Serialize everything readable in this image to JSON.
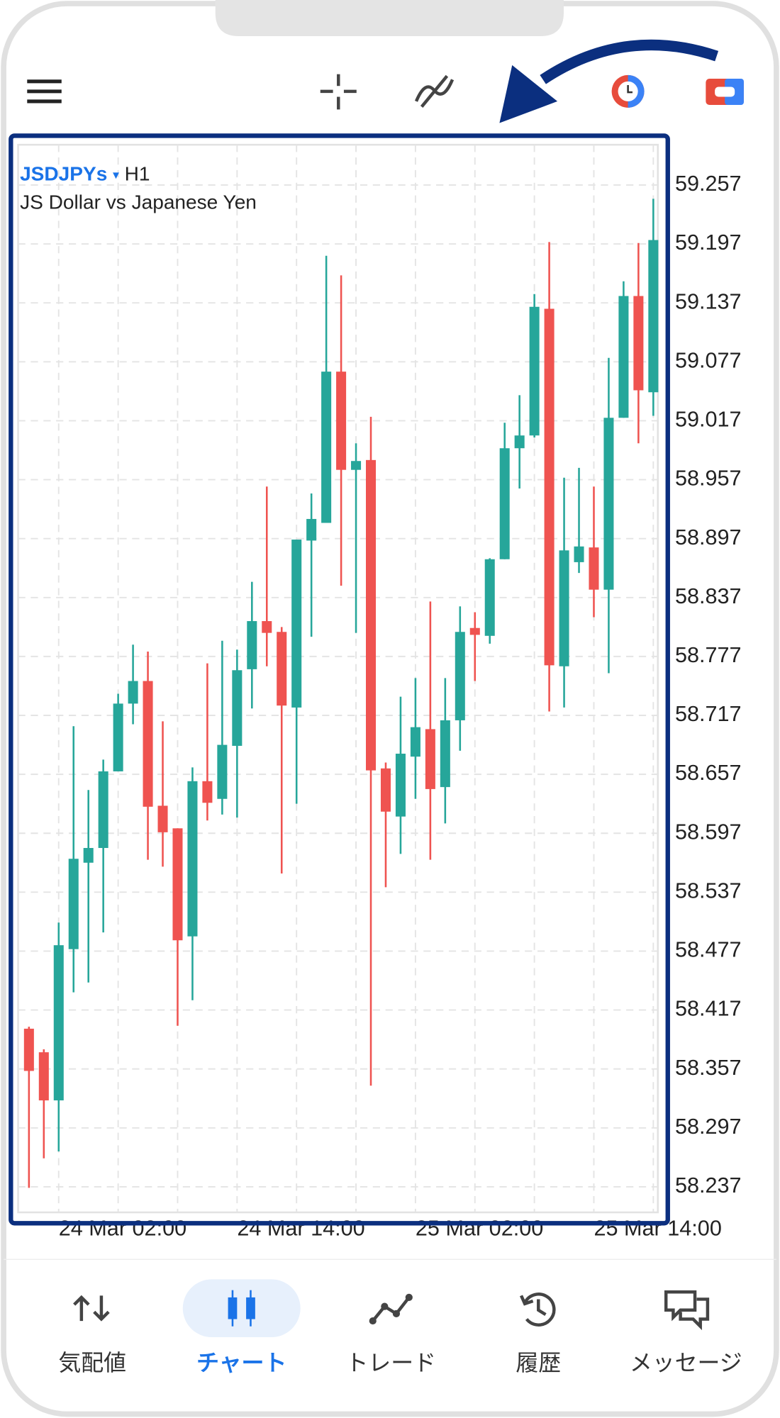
{
  "chart_data": {
    "type": "candlestick",
    "symbol": "JSDJPYs",
    "timeframe": "H1",
    "description": "JS Dollar vs Japanese Yen",
    "categories": [
      null,
      null,
      "24 Mar 02:00",
      null,
      null,
      null,
      null,
      null,
      null,
      null,
      null,
      null,
      null,
      null,
      "24 Mar 14:00",
      null,
      null,
      null,
      null,
      null,
      null,
      null,
      null,
      null,
      null,
      null,
      "25 Mar 02:00",
      null,
      null,
      null,
      null,
      null,
      null,
      null,
      null,
      null,
      null,
      null,
      "25 Mar 14:00",
      null,
      null,
      null,
      null
    ],
    "open": [
      58.398,
      58.374,
      58.325,
      58.479,
      58.567,
      58.582,
      58.66,
      58.729,
      58.752,
      58.625,
      58.602,
      58.492,
      58.65,
      58.632,
      58.686,
      58.764,
      58.813,
      58.802,
      58.725,
      58.895,
      58.913,
      59.067,
      58.967,
      58.977,
      58.663,
      58.614,
      58.675,
      58.703,
      58.644,
      58.712,
      58.806,
      58.798,
      58.876,
      58.989,
      59.002,
      59.131,
      58.767,
      58.873,
      58.888,
      58.845,
      59.02,
      59.144,
      59.046
    ],
    "high": [
      58.4,
      58.377,
      58.506,
      58.706,
      58.641,
      58.672,
      58.739,
      58.789,
      58.782,
      58.711,
      58.602,
      58.664,
      58.77,
      58.793,
      58.784,
      58.853,
      58.95,
      58.807,
      58.896,
      58.943,
      59.185,
      59.165,
      58.994,
      59.021,
      58.669,
      58.736,
      58.755,
      58.833,
      58.755,
      58.828,
      58.822,
      58.877,
      59.015,
      59.043,
      59.146,
      59.199,
      58.959,
      58.969,
      58.95,
      59.081,
      59.159,
      59.198,
      59.243
    ],
    "low": [
      58.236,
      58.266,
      58.273,
      58.435,
      58.445,
      58.496,
      58.66,
      58.708,
      58.57,
      58.563,
      58.401,
      58.427,
      58.61,
      58.616,
      58.613,
      58.724,
      58.767,
      58.556,
      58.627,
      58.797,
      58.913,
      58.849,
      58.801,
      58.34,
      58.542,
      58.576,
      58.632,
      58.57,
      58.607,
      58.681,
      58.752,
      58.79,
      58.876,
      58.948,
      59.0,
      58.721,
      58.725,
      58.862,
      58.817,
      58.76,
      59.02,
      58.994,
      59.022
    ],
    "close": [
      58.355,
      58.325,
      58.483,
      58.571,
      58.582,
      58.66,
      58.729,
      58.752,
      58.624,
      58.598,
      58.488,
      58.65,
      58.628,
      58.687,
      58.763,
      58.813,
      58.801,
      58.727,
      58.896,
      58.917,
      59.067,
      58.967,
      58.976,
      58.661,
      58.619,
      58.678,
      58.705,
      58.642,
      58.712,
      58.802,
      58.799,
      58.876,
      58.989,
      59.002,
      59.133,
      58.768,
      58.885,
      58.889,
      58.845,
      59.02,
      59.144,
      59.048,
      59.201
    ],
    "up_color": "#26a69a",
    "down_color": "#ef5350",
    "ylim": [
      58.211,
      59.298
    ],
    "yticks": [
      59.257,
      59.197,
      59.137,
      59.077,
      59.017,
      58.957,
      58.897,
      58.837,
      58.777,
      58.717,
      58.657,
      58.597,
      58.537,
      58.477,
      58.417,
      58.357,
      58.297,
      58.237
    ],
    "grid": true
  },
  "bottom_nav": [
    "気配値",
    "チャート",
    "トレード",
    "履歴",
    "メッセージ"
  ]
}
